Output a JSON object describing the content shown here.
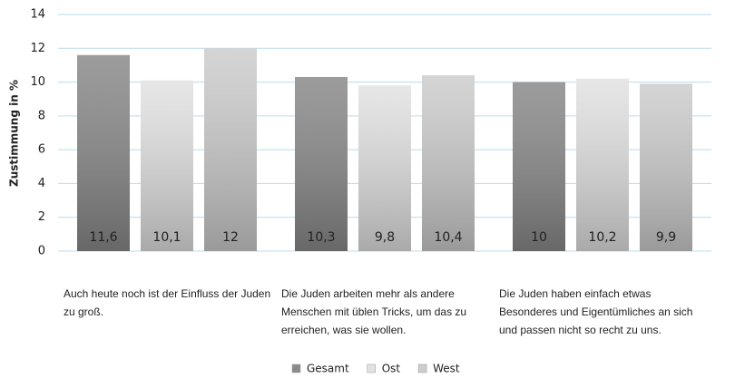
{
  "chart_data": {
    "type": "bar",
    "y_axis_label": "Zustimmung in %",
    "categories": [
      "Auch heute noch ist der Einfluss der Juden zu groß.",
      "Die Juden arbeiten mehr als andere Menschen mit üblen Tricks, um das zu erreichen, was sie wollen.",
      "Die Juden haben einfach etwas Besonderes und Eigentümliches an sich und passen nicht so recht zu uns."
    ],
    "series": [
      {
        "name": "Gesamt",
        "color": "#8a8a8a",
        "values": [
          11.6,
          10.3,
          10
        ],
        "value_labels": [
          "11,6",
          "10,3",
          "10"
        ]
      },
      {
        "name": "Ost",
        "color": "#e2e2e2",
        "values": [
          10.1,
          9.8,
          10.2
        ],
        "value_labels": [
          "10,1",
          "9,8",
          "10,2"
        ]
      },
      {
        "name": "West",
        "color": "#cdcdcd",
        "values": [
          12,
          10.4,
          9.9
        ],
        "value_labels": [
          "12",
          "10,4",
          "9,9"
        ]
      }
    ],
    "ylim": [
      0,
      14
    ],
    "yticks": [
      0,
      2,
      4,
      6,
      8,
      10,
      12,
      14
    ],
    "grid": true,
    "legend": "bottom"
  }
}
